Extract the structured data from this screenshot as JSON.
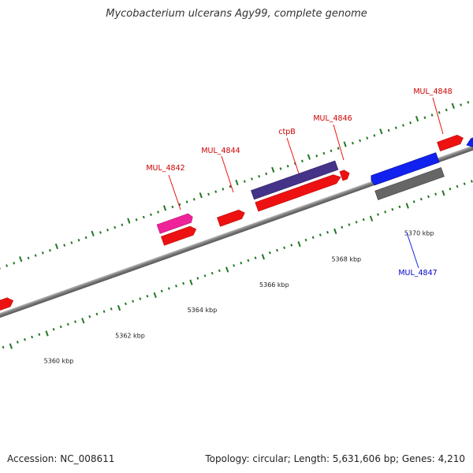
{
  "title": "Mycobacterium ulcerans Agy99, complete genome",
  "footer": {
    "accession": "Accession: NC_008611",
    "summary": "Topology: circular; Length: 5,631,606 bp; Genes: 4,210"
  },
  "colors": {
    "forward_gene": "#ee1111",
    "reverse_gene": "#1122ee",
    "backbone": "#888888",
    "tick": "#227722",
    "pink_feature": "#ee2299",
    "purple_feature": "#443388",
    "gray_feature": "#666666"
  },
  "scale_labels": [
    "5360 kbp",
    "5362 kbp",
    "5364 kbp",
    "5366 kbp",
    "5368 kbp",
    "5370 kbp"
  ],
  "gene_labels": [
    {
      "id": "lbl-4842",
      "text": "MUL_4842",
      "strand": "forward"
    },
    {
      "id": "lbl-4844",
      "text": "MUL_4844",
      "strand": "forward"
    },
    {
      "id": "lbl-ctpB",
      "text": "ctpB",
      "strand": "forward"
    },
    {
      "id": "lbl-4846",
      "text": "MUL_4846",
      "strand": "forward"
    },
    {
      "id": "lbl-4848",
      "text": "MUL_4848",
      "strand": "forward"
    },
    {
      "id": "lbl-4847",
      "text": "MUL_4847",
      "strand": "reverse"
    }
  ]
}
